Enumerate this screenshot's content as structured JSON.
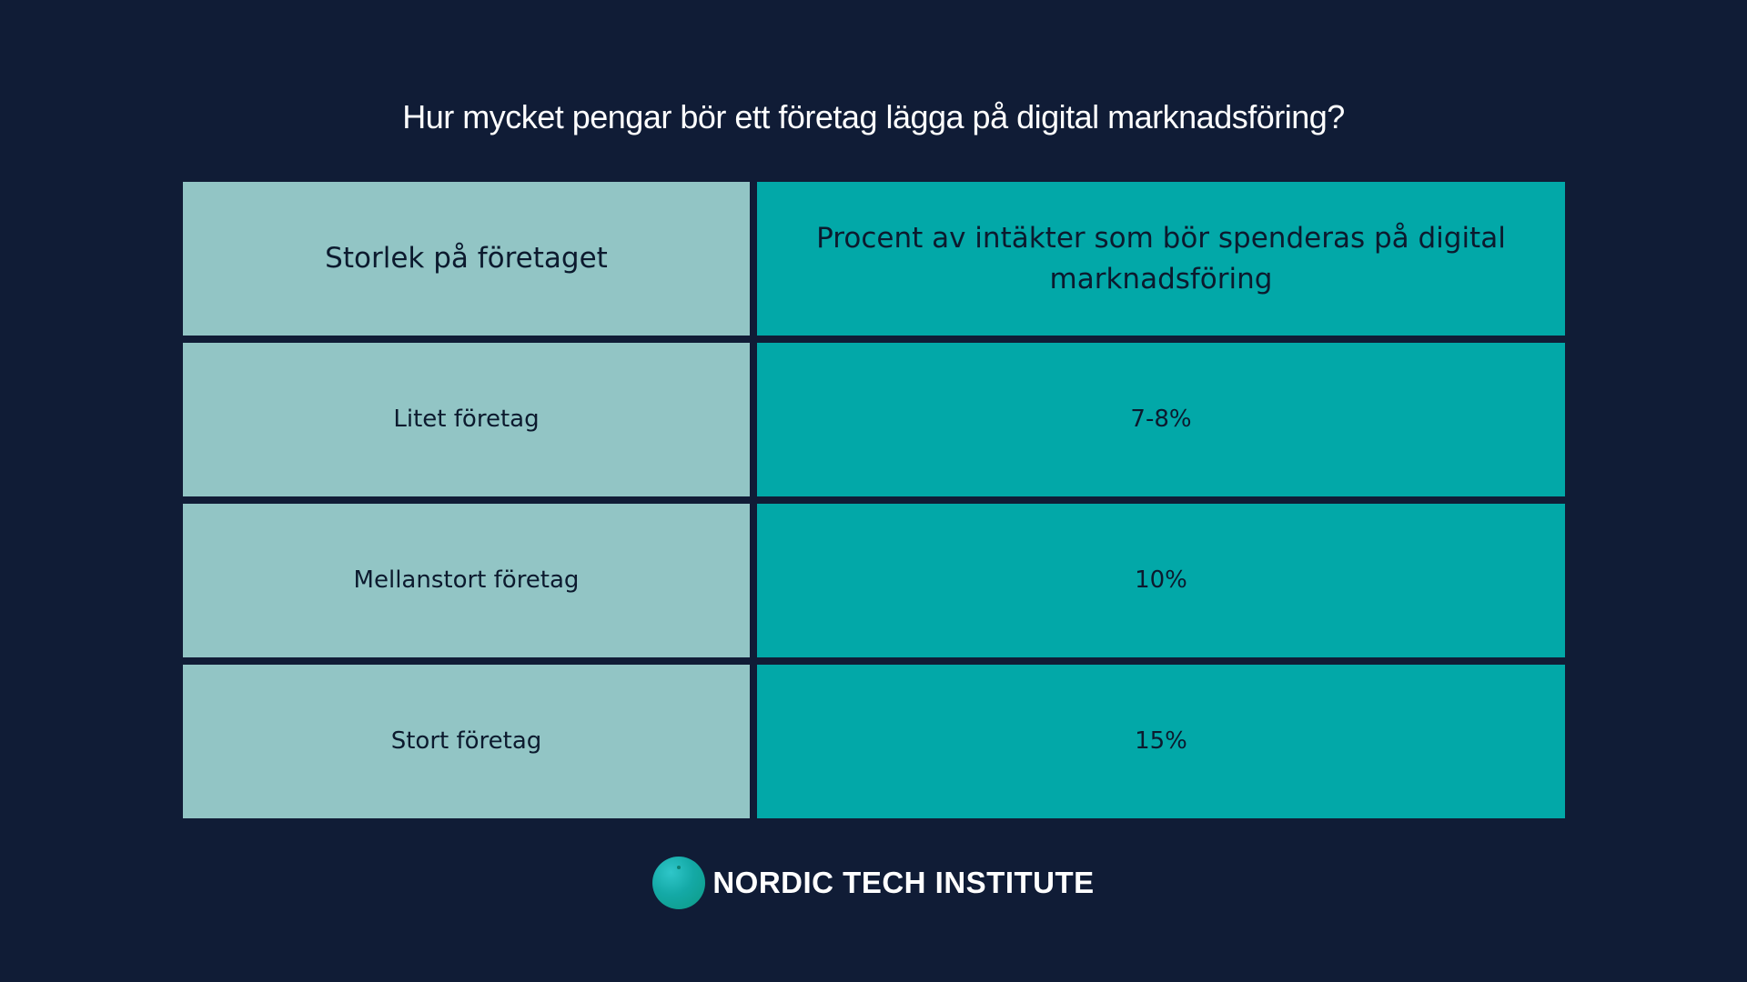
{
  "title": "Hur mycket pengar bör ett företag lägga på digital marknadsföring?",
  "table": {
    "headers": [
      "Storlek på företaget",
      "Procent av intäkter som bör spenderas på digital marknadsföring"
    ],
    "rows": [
      {
        "size": "Litet företag",
        "percent": "7-8%"
      },
      {
        "size": "Mellanstort företag",
        "percent": "10%"
      },
      {
        "size": "Stort företag",
        "percent": "15%"
      }
    ]
  },
  "footer": {
    "brand": "NORDIC TECH INSTITUTE",
    "logo_icon": "globe-circle-icon"
  },
  "colors": {
    "background": "#101c36",
    "column_a": "#92c5c5",
    "column_b": "#02a8a8",
    "text_dark": "#0c1a2e",
    "text_light": "#ffffff"
  }
}
